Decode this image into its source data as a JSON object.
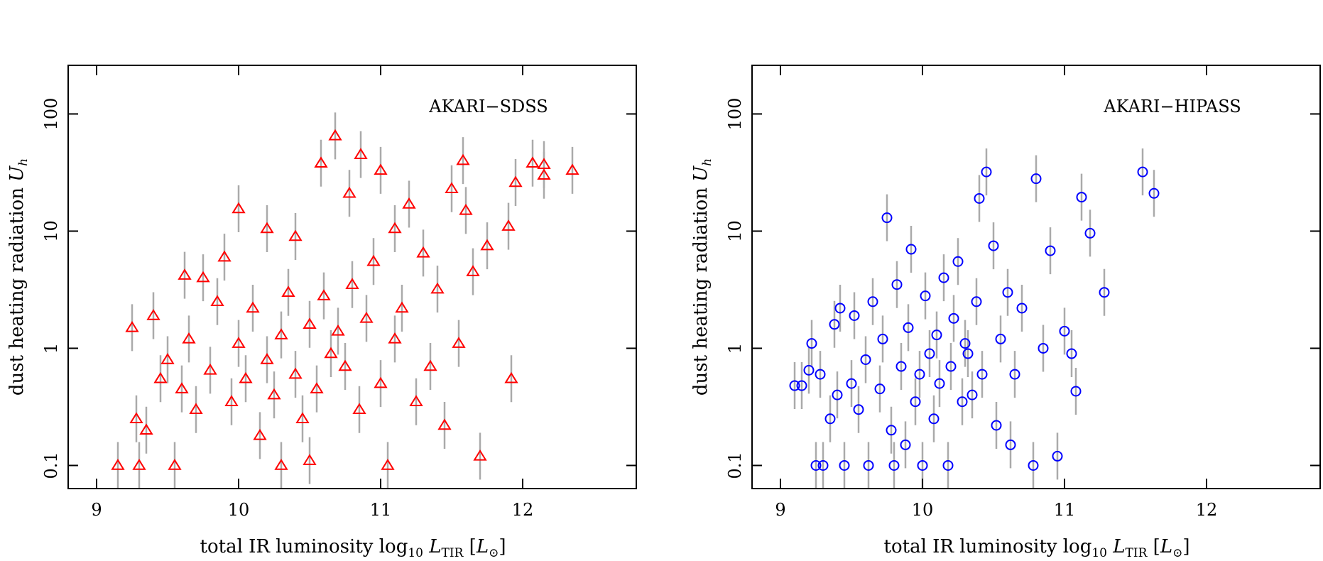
{
  "chart_data": [
    {
      "type": "scatter",
      "annotation": "AKARI−SDSS",
      "xlabel": [
        "total IR luminosity log",
        "10",
        " L",
        "TIR",
        " [",
        "L",
        "⊙",
        "]"
      ],
      "ylabel": [
        "dust heating radiation ",
        "U",
        "h"
      ],
      "xlim": [
        8.8,
        12.8
      ],
      "ylim": [
        0.0635,
        260
      ],
      "log_y": true,
      "xticks": [
        9,
        10,
        11,
        12
      ],
      "yticks": [
        0.1,
        1,
        10,
        100
      ],
      "color": "#ff0000",
      "marker": "triangle",
      "yerr": 0.2,
      "yerr_color": "#aaaaaa",
      "x": [
        9.15,
        9.25,
        9.28,
        9.3,
        9.35,
        9.4,
        9.45,
        9.5,
        9.55,
        9.6,
        9.62,
        9.65,
        9.7,
        9.75,
        9.8,
        9.85,
        9.9,
        9.95,
        10.0,
        10.0,
        10.05,
        10.1,
        10.15,
        10.2,
        10.2,
        10.25,
        10.3,
        10.3,
        10.35,
        10.4,
        10.4,
        10.45,
        10.5,
        10.5,
        10.55,
        10.58,
        10.6,
        10.65,
        10.68,
        10.7,
        10.75,
        10.78,
        10.8,
        10.85,
        10.86,
        10.9,
        10.95,
        11.0,
        11.0,
        11.05,
        11.1,
        11.1,
        11.15,
        11.2,
        11.25,
        11.3,
        11.35,
        11.4,
        11.45,
        11.5,
        11.55,
        11.58,
        11.6,
        11.65,
        11.7,
        11.75,
        11.9,
        11.92,
        11.95,
        12.07,
        12.15,
        12.15,
        12.35
      ],
      "values": [
        0.1,
        1.5,
        0.25,
        0.1,
        0.2,
        1.9,
        0.55,
        0.8,
        0.1,
        0.45,
        4.2,
        1.2,
        0.3,
        4.0,
        0.65,
        2.5,
        6.0,
        0.35,
        15.5,
        1.1,
        0.55,
        2.2,
        0.18,
        0.8,
        10.5,
        0.4,
        1.3,
        0.1,
        3.0,
        9.0,
        0.6,
        0.25,
        1.6,
        0.11,
        0.45,
        38,
        2.8,
        0.9,
        65,
        1.4,
        0.7,
        21,
        3.5,
        0.3,
        45,
        1.8,
        5.5,
        33,
        0.5,
        0.1,
        10.5,
        1.2,
        2.2,
        17,
        0.35,
        6.5,
        0.7,
        3.2,
        0.22,
        23,
        1.1,
        40,
        15,
        4.5,
        0.12,
        7.5,
        11,
        0.55,
        26,
        38,
        37,
        30,
        33
      ]
    },
    {
      "type": "scatter",
      "annotation": "AKARI−HIPASS",
      "xlabel": [
        "total IR luminosity log",
        "10",
        " L",
        "TIR",
        " [",
        "L",
        "⊙",
        "]"
      ],
      "ylabel": [
        "dust heating radiation ",
        "U",
        "h"
      ],
      "xlim": [
        8.8,
        12.8
      ],
      "ylim": [
        0.0635,
        260
      ],
      "log_y": true,
      "xticks": [
        9,
        10,
        11,
        12
      ],
      "yticks": [
        0.1,
        1,
        10,
        100
      ],
      "color": "#0000ff",
      "marker": "circle",
      "yerr": 0.2,
      "yerr_color": "#aaaaaa",
      "x": [
        9.1,
        9.15,
        9.2,
        9.22,
        9.25,
        9.28,
        9.3,
        9.35,
        9.38,
        9.4,
        9.42,
        9.45,
        9.5,
        9.52,
        9.55,
        9.6,
        9.62,
        9.65,
        9.7,
        9.72,
        9.75,
        9.78,
        9.8,
        9.82,
        9.85,
        9.88,
        9.9,
        9.92,
        9.95,
        9.98,
        10.0,
        10.02,
        10.05,
        10.08,
        10.1,
        10.12,
        10.15,
        10.18,
        10.2,
        10.22,
        10.25,
        10.28,
        10.3,
        10.32,
        10.35,
        10.38,
        10.4,
        10.42,
        10.45,
        10.5,
        10.52,
        10.55,
        10.6,
        10.62,
        10.65,
        10.7,
        10.78,
        10.8,
        10.85,
        10.9,
        10.95,
        11.0,
        11.05,
        11.08,
        11.12,
        11.18,
        11.28,
        11.55,
        11.63
      ],
      "values": [
        0.48,
        0.48,
        0.65,
        1.1,
        0.1,
        0.6,
        0.1,
        0.25,
        1.6,
        0.4,
        2.2,
        0.1,
        0.5,
        1.9,
        0.3,
        0.8,
        0.1,
        2.5,
        0.45,
        1.2,
        13,
        0.2,
        0.1,
        3.5,
        0.7,
        0.15,
        1.5,
        7.0,
        0.35,
        0.6,
        0.1,
        2.8,
        0.9,
        0.25,
        1.3,
        0.5,
        4.0,
        0.1,
        0.7,
        1.8,
        5.5,
        0.35,
        1.1,
        0.9,
        0.4,
        2.5,
        19,
        0.6,
        32,
        7.5,
        0.22,
        1.2,
        3.0,
        0.15,
        0.6,
        2.2,
        0.1,
        28,
        1.0,
        6.8,
        0.12,
        1.4,
        0.9,
        0.43,
        19.5,
        9.6,
        3.0,
        32,
        21
      ]
    }
  ]
}
